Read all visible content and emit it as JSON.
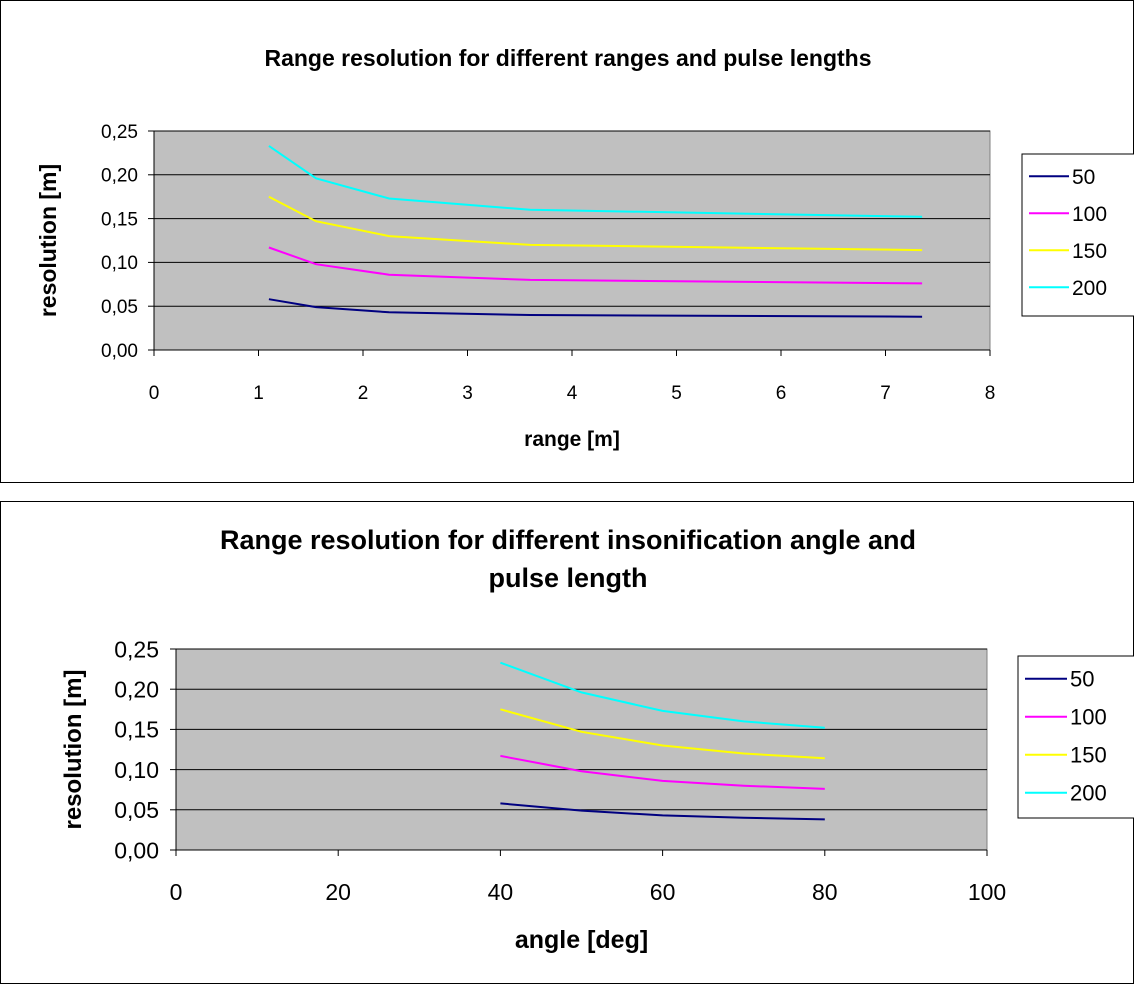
{
  "chart_data": [
    {
      "type": "line",
      "title": "Range resolution for different ranges and pulse lengths",
      "xlabel": "range [m]",
      "ylabel": "resolution [m]",
      "xlim": [
        0,
        8
      ],
      "ylim": [
        0,
        0.25
      ],
      "xticks": [
        "0",
        "1",
        "2",
        "3",
        "4",
        "5",
        "6",
        "7",
        "8"
      ],
      "yticks": [
        "0,00",
        "0,05",
        "0,10",
        "0,15",
        "0,20",
        "0,25"
      ],
      "grid": "horizontal",
      "plot_background": "#c0c0c0",
      "legend_position": "right",
      "x": [
        1.1,
        1.55,
        2.25,
        3.6,
        7.35
      ],
      "series": [
        {
          "name": "50",
          "color": "#000080",
          "values": [
            0.058,
            0.049,
            0.043,
            0.04,
            0.038
          ]
        },
        {
          "name": "100",
          "color": "#ff00ff",
          "values": [
            0.117,
            0.098,
            0.086,
            0.08,
            0.076
          ]
        },
        {
          "name": "150",
          "color": "#ffff00",
          "values": [
            0.175,
            0.147,
            0.13,
            0.12,
            0.114
          ]
        },
        {
          "name": "200",
          "color": "#00ffff",
          "values": [
            0.233,
            0.196,
            0.173,
            0.16,
            0.152
          ]
        }
      ]
    },
    {
      "type": "line",
      "title": "Range resolution for different insonification angle and pulse length",
      "xlabel": "angle [deg]",
      "ylabel": "resolution [m]",
      "xlim": [
        0,
        100
      ],
      "ylim": [
        0,
        0.25
      ],
      "xticks": [
        "0",
        "20",
        "40",
        "60",
        "80",
        "100"
      ],
      "yticks": [
        "0,00",
        "0,05",
        "0,10",
        "0,15",
        "0,20",
        "0,25"
      ],
      "grid": "horizontal",
      "plot_background": "#c0c0c0",
      "legend_position": "right",
      "x": [
        40,
        50,
        60,
        70,
        80
      ],
      "series": [
        {
          "name": "50",
          "color": "#000080",
          "values": [
            0.058,
            0.049,
            0.043,
            0.04,
            0.038
          ]
        },
        {
          "name": "100",
          "color": "#ff00ff",
          "values": [
            0.117,
            0.098,
            0.086,
            0.08,
            0.076
          ]
        },
        {
          "name": "150",
          "color": "#ffff00",
          "values": [
            0.175,
            0.147,
            0.13,
            0.12,
            0.114
          ]
        },
        {
          "name": "200",
          "color": "#00ffff",
          "values": [
            0.233,
            0.196,
            0.173,
            0.16,
            0.152
          ]
        }
      ]
    }
  ]
}
